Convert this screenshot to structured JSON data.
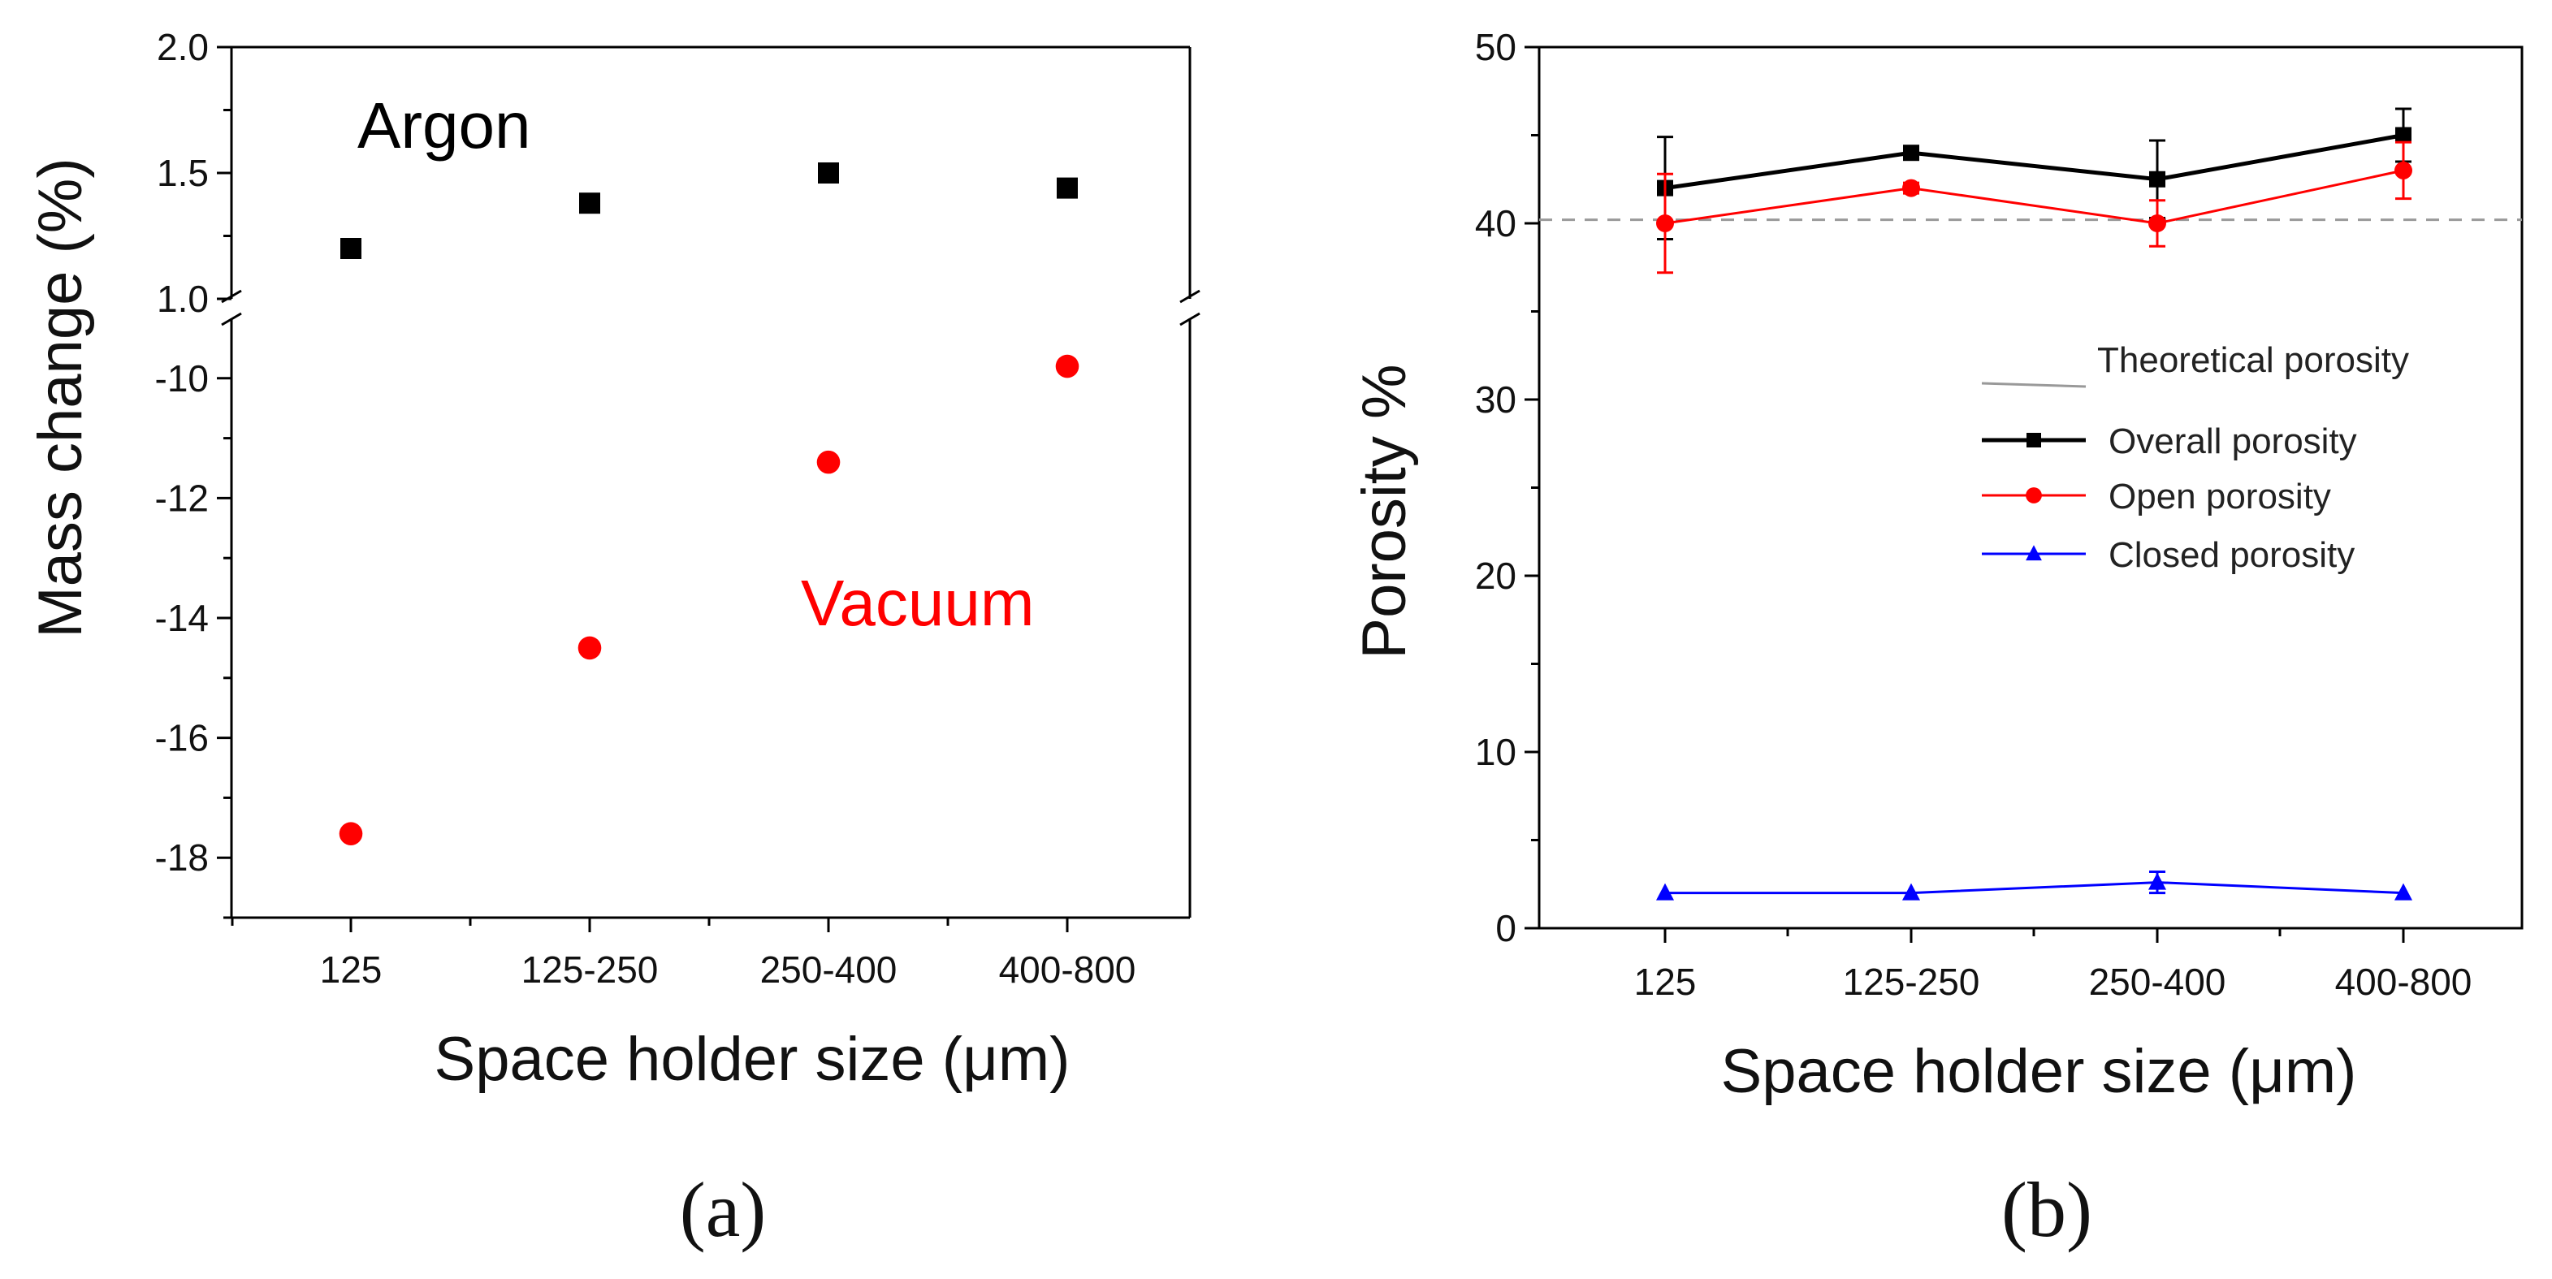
{
  "chart_data": [
    {
      "panel": "(a)",
      "type": "scatter",
      "categories": [
        "125",
        "125-250",
        "250-400",
        "400-800"
      ],
      "xlabel": "Space holder size (μm)",
      "ylabel": "Mass change (%)",
      "y_break": true,
      "upper_segment": {
        "ylim": [
          1.0,
          2.0
        ],
        "ticks": [
          "1.0",
          "1.5",
          "2.0"
        ]
      },
      "lower_segment": {
        "ylim": [
          -19,
          -9
        ],
        "ticks": [
          "-10",
          "-12",
          "-14",
          "-16",
          "-18"
        ]
      },
      "series": [
        {
          "name": "Argon",
          "color": "#000000",
          "marker": "square",
          "segment": "upper",
          "values": [
            1.2,
            1.38,
            1.5,
            1.44
          ]
        },
        {
          "name": "Vacuum",
          "color": "#ff0000",
          "marker": "circle",
          "segment": "lower",
          "values": [
            -17.6,
            -14.5,
            -11.4,
            -9.8
          ]
        }
      ],
      "annotations": [
        {
          "text": "Argon",
          "color": "#000000"
        },
        {
          "text": "Vacuum",
          "color": "#ff0000"
        }
      ]
    },
    {
      "panel": "(b)",
      "type": "line",
      "categories": [
        "125",
        "125-250",
        "250-400",
        "400-800"
      ],
      "xlabel": "Space holder size (μm)",
      "ylabel": "Porosity %",
      "ylim": [
        0,
        50
      ],
      "ticks": [
        "0",
        "10",
        "20",
        "30",
        "40",
        "50"
      ],
      "reference_line": {
        "name": "Theoretical porosity",
        "value": 40.2,
        "color": "#999999"
      },
      "series": [
        {
          "name": "Overall porosity",
          "color": "#000000",
          "marker": "square",
          "values": [
            42,
            44,
            42.5,
            45
          ],
          "errors": [
            2.9,
            0.3,
            2.2,
            1.5
          ]
        },
        {
          "name": "Open porosity",
          "color": "#ff0000",
          "marker": "circle",
          "values": [
            40,
            42,
            40,
            43
          ],
          "errors": [
            2.8,
            0.3,
            1.3,
            1.6
          ]
        },
        {
          "name": "Closed porosity",
          "color": "#0000ff",
          "marker": "triangle",
          "values": [
            2,
            2,
            2.6,
            2
          ],
          "errors": [
            0.1,
            0.1,
            0.6,
            0.1
          ]
        }
      ],
      "legend_position": "right-middle",
      "legend": [
        "Theoretical porosity",
        "Overall porosity",
        "Open porosity",
        "Closed porosity"
      ]
    }
  ]
}
